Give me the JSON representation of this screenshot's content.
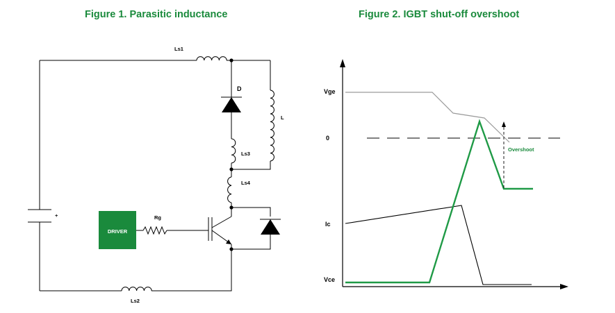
{
  "figure1": {
    "title": "Figure 1. Parasitic inductance",
    "labels": {
      "ls1": "Ls1",
      "ls2": "Ls2",
      "ls3": "Ls3",
      "ls4": "Ls4",
      "d": "D",
      "l": "L",
      "rg": "Rg",
      "driver": "DRIVER",
      "plus": "+"
    }
  },
  "figure2": {
    "title": "Figure 2. IGBT shut-off overshoot",
    "labels": {
      "vge": "Vge",
      "zero": "0",
      "ic": "Ic",
      "vce": "Vce",
      "overshoot": "Overshoot"
    }
  },
  "colors": {
    "title_green": "#1a8a3c",
    "driver_green": "#1a8a3c",
    "trace_green": "#1f9a46",
    "vge_gray": "#9a9a9a"
  }
}
